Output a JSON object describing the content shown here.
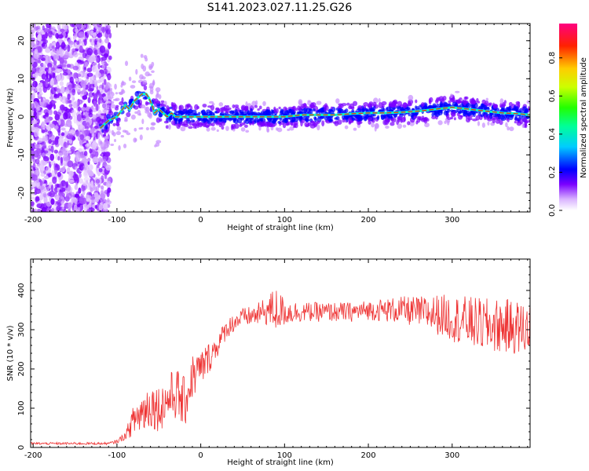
{
  "figure_title": "S141.2023.027.11.25.G26",
  "chart_data": [
    {
      "type": "heatmap",
      "xlabel": "Height of straight line (km)",
      "ylabel": "Frequency (Hz)",
      "xlim": [
        -203,
        393
      ],
      "ylim": [
        -25,
        24.5
      ],
      "x_ticks": [
        -200,
        -100,
        0,
        100,
        200,
        300
      ],
      "y_ticks": [
        -20,
        -10,
        0,
        10,
        20
      ],
      "colorbar": {
        "label": "Normalized spectral amplitude",
        "range": [
          0.0,
          0.98
        ],
        "ticks": [
          0.0,
          0.2,
          0.4,
          0.6,
          0.8
        ],
        "colormap": [
          "#ffffff",
          "#7a00ff",
          "#0000ff",
          "#00ffff",
          "#00ff00",
          "#ffff00",
          "#ff0000",
          "#ff0080"
        ]
      },
      "ridge": {
        "x": [
          -120,
          -110,
          -100,
          -90,
          -85,
          -80,
          -75,
          -70,
          -65,
          -62,
          -58,
          -55,
          -50,
          -45,
          -40,
          -35,
          -30,
          -25,
          -20,
          -10,
          0,
          10,
          20,
          30,
          40,
          50,
          60,
          80,
          100,
          120,
          140,
          160,
          180,
          200,
          220,
          240,
          260,
          280,
          300,
          320,
          340,
          360,
          380,
          393
        ],
        "y": [
          -3,
          -1,
          0,
          3,
          2,
          4,
          5,
          6,
          6,
          5,
          3,
          1,
          2,
          1,
          0,
          1,
          0,
          0,
          0,
          0,
          0,
          0,
          0,
          0,
          0,
          0,
          0,
          0,
          0,
          0.5,
          0.5,
          0.5,
          0.8,
          1,
          1,
          1.2,
          1.5,
          2,
          2.5,
          2,
          1.5,
          1,
          0.8,
          0.5
        ]
      },
      "grid": false,
      "legend": "none"
    },
    {
      "type": "line",
      "xlabel": "Height of straight line (km)",
      "ylabel": "SNR (10 * v/v)",
      "xlim": [
        -203,
        393
      ],
      "ylim": [
        0,
        480
      ],
      "x_ticks": [
        -200,
        -100,
        0,
        100,
        200,
        300
      ],
      "y_ticks": [
        0,
        100,
        200,
        300,
        400
      ],
      "color": "#ee3333",
      "series": [
        {
          "x": [
            -203,
            -180,
            -160,
            -140,
            -120,
            -110,
            -100,
            -90,
            -80,
            -70,
            -60,
            -50,
            -40,
            -30,
            -20,
            -10,
            0,
            10,
            20,
            30,
            40,
            50,
            60,
            70,
            80,
            90,
            100,
            120,
            140,
            160,
            180,
            200,
            220,
            240,
            260,
            280,
            300,
            320,
            340,
            360,
            380,
            393
          ],
          "values": [
            10,
            10,
            10,
            10,
            10,
            10,
            15,
            30,
            70,
            90,
            110,
            100,
            120,
            140,
            110,
            180,
            200,
            230,
            260,
            300,
            320,
            330,
            335,
            340,
            350,
            350,
            345,
            345,
            345,
            345,
            345,
            350,
            350,
            350,
            345,
            340,
            330,
            320,
            310,
            310,
            305,
            300
          ],
          "envelope": [
            3,
            3,
            3,
            3,
            3,
            3,
            5,
            10,
            40,
            60,
            60,
            60,
            60,
            70,
            70,
            60,
            50,
            40,
            30,
            25,
            25,
            25,
            25,
            30,
            40,
            60,
            35,
            25,
            25,
            25,
            25,
            25,
            30,
            35,
            40,
            50,
            60,
            65,
            70,
            70,
            70,
            70
          ]
        }
      ],
      "grid": false,
      "legend": "none"
    }
  ]
}
